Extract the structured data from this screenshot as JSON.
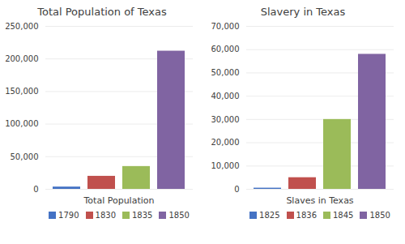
{
  "chart_data": [
    {
      "type": "bar",
      "title": "Total Population of Texas",
      "xlabel": "Total Population",
      "categories": [
        "1790",
        "1830",
        "1835",
        "1850"
      ],
      "values": [
        3500,
        20000,
        35000,
        212000
      ],
      "colors": [
        "#4472C4",
        "#C0504D",
        "#9BBB59",
        "#8064A2"
      ],
      "ylim": [
        0,
        250000
      ],
      "yticks": [
        0,
        {
          "value": 50000,
          "label": "50,000"
        },
        {
          "value": 100000,
          "label": "100,000"
        },
        {
          "value": 150000,
          "label": "150,000"
        },
        {
          "value": 200000,
          "label": "200,000"
        },
        {
          "value": 250000,
          "label": "250,000"
        }
      ],
      "grid": true,
      "legend": "bottom",
      "tick_labels": "y"
    },
    {
      "type": "bar",
      "title": "Slavery in Texas",
      "xlabel": "Slaves in Texas",
      "categories": [
        "1825",
        "1836",
        "1845",
        "1850"
      ],
      "values": [
        500,
        5000,
        30000,
        58000
      ],
      "colors": [
        "#4472C4",
        "#C0504D",
        "#9BBB59",
        "#8064A2"
      ],
      "ylim": [
        0,
        70000
      ],
      "yticks": [
        0,
        {
          "value": 10000,
          "label": "10,000"
        },
        {
          "value": 20000,
          "label": "20,000"
        },
        {
          "value": 30000,
          "label": "30,000"
        },
        {
          "value": 40000,
          "label": "40,000"
        },
        {
          "value": 50000,
          "label": "50,000"
        },
        {
          "value": 60000,
          "label": "60,000"
        },
        {
          "value": 70000,
          "label": "70,000"
        }
      ],
      "grid": true,
      "legend": "bottom",
      "tick_labels": "y"
    }
  ]
}
